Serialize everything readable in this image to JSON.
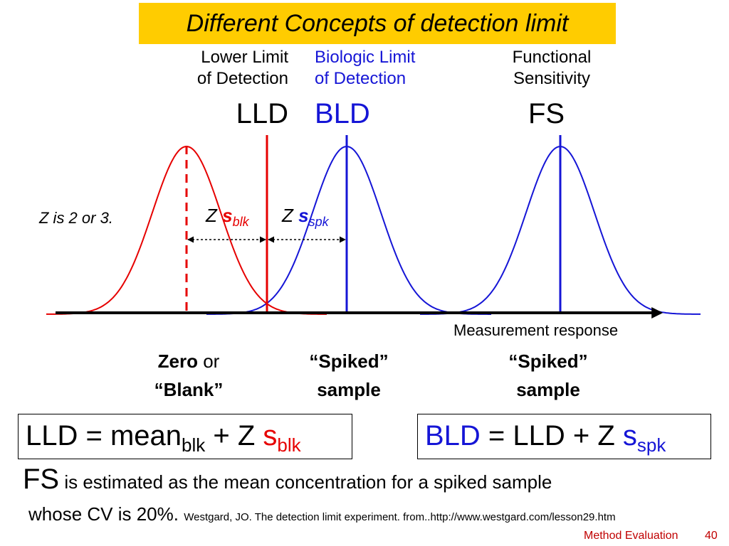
{
  "title": "Different Concepts of detection limit",
  "headers": {
    "lld": {
      "line1": "Lower Limit",
      "line2": "of Detection",
      "abbr": "LLD"
    },
    "bld": {
      "line1": "Biologic Limit",
      "line2": "of Detection",
      "abbr": "BLD"
    },
    "fs": {
      "line1": "Functional",
      "line2": "Sensitivity",
      "abbr": "FS"
    }
  },
  "z_note": "Z is 2 or 3.",
  "z_blk": {
    "z": "Z",
    "s": "s",
    "sub": "blk"
  },
  "z_spk": {
    "z": "Z",
    "s": "s",
    "sub": "spk"
  },
  "axis_label": "Measurement response",
  "samples": {
    "blank": {
      "bold1": "Zero",
      "normal1": " or",
      "line2": "“Blank”"
    },
    "spiked1": {
      "line1": "“Spiked”",
      "line2": "sample"
    },
    "spiked2": {
      "line1": "“Spiked”",
      "line2": "sample"
    }
  },
  "formula_lld": {
    "lhs": "LLD = mean",
    "sub1": "blk",
    "mid": " + Z ",
    "s": "s",
    "sub2": "blk"
  },
  "formula_bld": {
    "lhs": "BLD",
    "mid": " = LLD + Z ",
    "s": "s",
    "sub": "spk"
  },
  "fs_text": {
    "abbr": "FS",
    "rest": " is estimated as the mean concentration for a spiked sample",
    "line2": "whose CV is 20%.",
    "citation": "Westgard, JO. The detection limit experiment. from..http://www.westgard.com/lesson29.htm"
  },
  "footer": {
    "label": "Method Evaluation",
    "page": "40"
  },
  "colors": {
    "red": "#E60000",
    "blue": "#1515D6",
    "title_bg": "#FFCC00"
  }
}
